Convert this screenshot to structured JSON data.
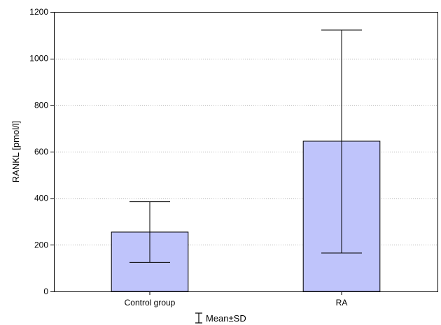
{
  "chart_data": {
    "type": "bar",
    "title": "",
    "xlabel": "",
    "ylabel": "RANKL [pmol/l]",
    "categories": [
      "Control group",
      "RA"
    ],
    "series": [
      {
        "values": [
          255,
          645
        ],
        "error_low": [
          125,
          165
        ],
        "error_high": [
          385,
          1122
        ]
      }
    ],
    "ylim": [
      0,
      1200
    ],
    "yticks": [
      0,
      200,
      400,
      600,
      800,
      1000,
      1200
    ],
    "grid": "horizontal-dotted",
    "bar_color": "#bfc4fb",
    "bar_edge_color": "#000000",
    "legend": {
      "label": "Mean±SD",
      "placement": "bottom-center"
    }
  }
}
